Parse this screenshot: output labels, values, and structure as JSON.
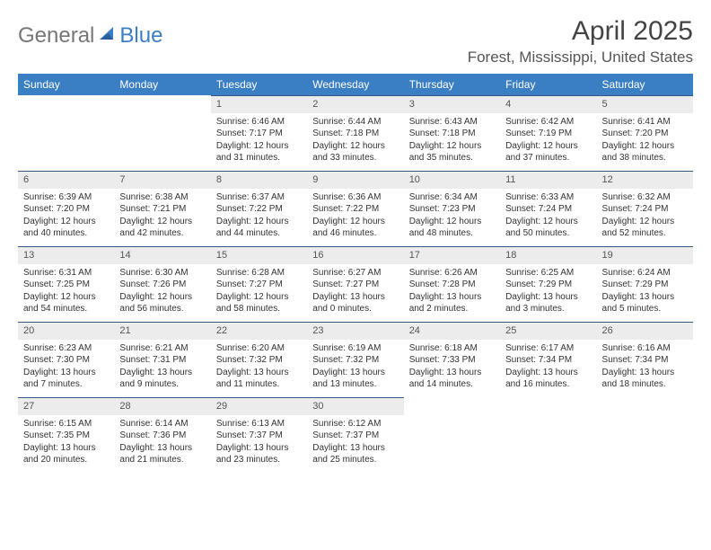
{
  "brand": {
    "part1": "General",
    "part2": "Blue",
    "color_general": "#777777",
    "color_blue": "#3a7fc4"
  },
  "title": "April 2025",
  "location": "Forest, Mississippi, United States",
  "header_bg": "#3a7fc4",
  "header_text": "#ffffff",
  "daynum_bg": "#ececec",
  "daynum_border": "#355a82",
  "weekdays": [
    "Sunday",
    "Monday",
    "Tuesday",
    "Wednesday",
    "Thursday",
    "Friday",
    "Saturday"
  ],
  "weeks": [
    [
      null,
      null,
      {
        "n": "1",
        "sr": "Sunrise: 6:46 AM",
        "ss": "Sunset: 7:17 PM",
        "dl": "Daylight: 12 hours and 31 minutes."
      },
      {
        "n": "2",
        "sr": "Sunrise: 6:44 AM",
        "ss": "Sunset: 7:18 PM",
        "dl": "Daylight: 12 hours and 33 minutes."
      },
      {
        "n": "3",
        "sr": "Sunrise: 6:43 AM",
        "ss": "Sunset: 7:18 PM",
        "dl": "Daylight: 12 hours and 35 minutes."
      },
      {
        "n": "4",
        "sr": "Sunrise: 6:42 AM",
        "ss": "Sunset: 7:19 PM",
        "dl": "Daylight: 12 hours and 37 minutes."
      },
      {
        "n": "5",
        "sr": "Sunrise: 6:41 AM",
        "ss": "Sunset: 7:20 PM",
        "dl": "Daylight: 12 hours and 38 minutes."
      }
    ],
    [
      {
        "n": "6",
        "sr": "Sunrise: 6:39 AM",
        "ss": "Sunset: 7:20 PM",
        "dl": "Daylight: 12 hours and 40 minutes."
      },
      {
        "n": "7",
        "sr": "Sunrise: 6:38 AM",
        "ss": "Sunset: 7:21 PM",
        "dl": "Daylight: 12 hours and 42 minutes."
      },
      {
        "n": "8",
        "sr": "Sunrise: 6:37 AM",
        "ss": "Sunset: 7:22 PM",
        "dl": "Daylight: 12 hours and 44 minutes."
      },
      {
        "n": "9",
        "sr": "Sunrise: 6:36 AM",
        "ss": "Sunset: 7:22 PM",
        "dl": "Daylight: 12 hours and 46 minutes."
      },
      {
        "n": "10",
        "sr": "Sunrise: 6:34 AM",
        "ss": "Sunset: 7:23 PM",
        "dl": "Daylight: 12 hours and 48 minutes."
      },
      {
        "n": "11",
        "sr": "Sunrise: 6:33 AM",
        "ss": "Sunset: 7:24 PM",
        "dl": "Daylight: 12 hours and 50 minutes."
      },
      {
        "n": "12",
        "sr": "Sunrise: 6:32 AM",
        "ss": "Sunset: 7:24 PM",
        "dl": "Daylight: 12 hours and 52 minutes."
      }
    ],
    [
      {
        "n": "13",
        "sr": "Sunrise: 6:31 AM",
        "ss": "Sunset: 7:25 PM",
        "dl": "Daylight: 12 hours and 54 minutes."
      },
      {
        "n": "14",
        "sr": "Sunrise: 6:30 AM",
        "ss": "Sunset: 7:26 PM",
        "dl": "Daylight: 12 hours and 56 minutes."
      },
      {
        "n": "15",
        "sr": "Sunrise: 6:28 AM",
        "ss": "Sunset: 7:27 PM",
        "dl": "Daylight: 12 hours and 58 minutes."
      },
      {
        "n": "16",
        "sr": "Sunrise: 6:27 AM",
        "ss": "Sunset: 7:27 PM",
        "dl": "Daylight: 13 hours and 0 minutes."
      },
      {
        "n": "17",
        "sr": "Sunrise: 6:26 AM",
        "ss": "Sunset: 7:28 PM",
        "dl": "Daylight: 13 hours and 2 minutes."
      },
      {
        "n": "18",
        "sr": "Sunrise: 6:25 AM",
        "ss": "Sunset: 7:29 PM",
        "dl": "Daylight: 13 hours and 3 minutes."
      },
      {
        "n": "19",
        "sr": "Sunrise: 6:24 AM",
        "ss": "Sunset: 7:29 PM",
        "dl": "Daylight: 13 hours and 5 minutes."
      }
    ],
    [
      {
        "n": "20",
        "sr": "Sunrise: 6:23 AM",
        "ss": "Sunset: 7:30 PM",
        "dl": "Daylight: 13 hours and 7 minutes."
      },
      {
        "n": "21",
        "sr": "Sunrise: 6:21 AM",
        "ss": "Sunset: 7:31 PM",
        "dl": "Daylight: 13 hours and 9 minutes."
      },
      {
        "n": "22",
        "sr": "Sunrise: 6:20 AM",
        "ss": "Sunset: 7:32 PM",
        "dl": "Daylight: 13 hours and 11 minutes."
      },
      {
        "n": "23",
        "sr": "Sunrise: 6:19 AM",
        "ss": "Sunset: 7:32 PM",
        "dl": "Daylight: 13 hours and 13 minutes."
      },
      {
        "n": "24",
        "sr": "Sunrise: 6:18 AM",
        "ss": "Sunset: 7:33 PM",
        "dl": "Daylight: 13 hours and 14 minutes."
      },
      {
        "n": "25",
        "sr": "Sunrise: 6:17 AM",
        "ss": "Sunset: 7:34 PM",
        "dl": "Daylight: 13 hours and 16 minutes."
      },
      {
        "n": "26",
        "sr": "Sunrise: 6:16 AM",
        "ss": "Sunset: 7:34 PM",
        "dl": "Daylight: 13 hours and 18 minutes."
      }
    ],
    [
      {
        "n": "27",
        "sr": "Sunrise: 6:15 AM",
        "ss": "Sunset: 7:35 PM",
        "dl": "Daylight: 13 hours and 20 minutes."
      },
      {
        "n": "28",
        "sr": "Sunrise: 6:14 AM",
        "ss": "Sunset: 7:36 PM",
        "dl": "Daylight: 13 hours and 21 minutes."
      },
      {
        "n": "29",
        "sr": "Sunrise: 6:13 AM",
        "ss": "Sunset: 7:37 PM",
        "dl": "Daylight: 13 hours and 23 minutes."
      },
      {
        "n": "30",
        "sr": "Sunrise: 6:12 AM",
        "ss": "Sunset: 7:37 PM",
        "dl": "Daylight: 13 hours and 25 minutes."
      },
      null,
      null,
      null
    ]
  ]
}
